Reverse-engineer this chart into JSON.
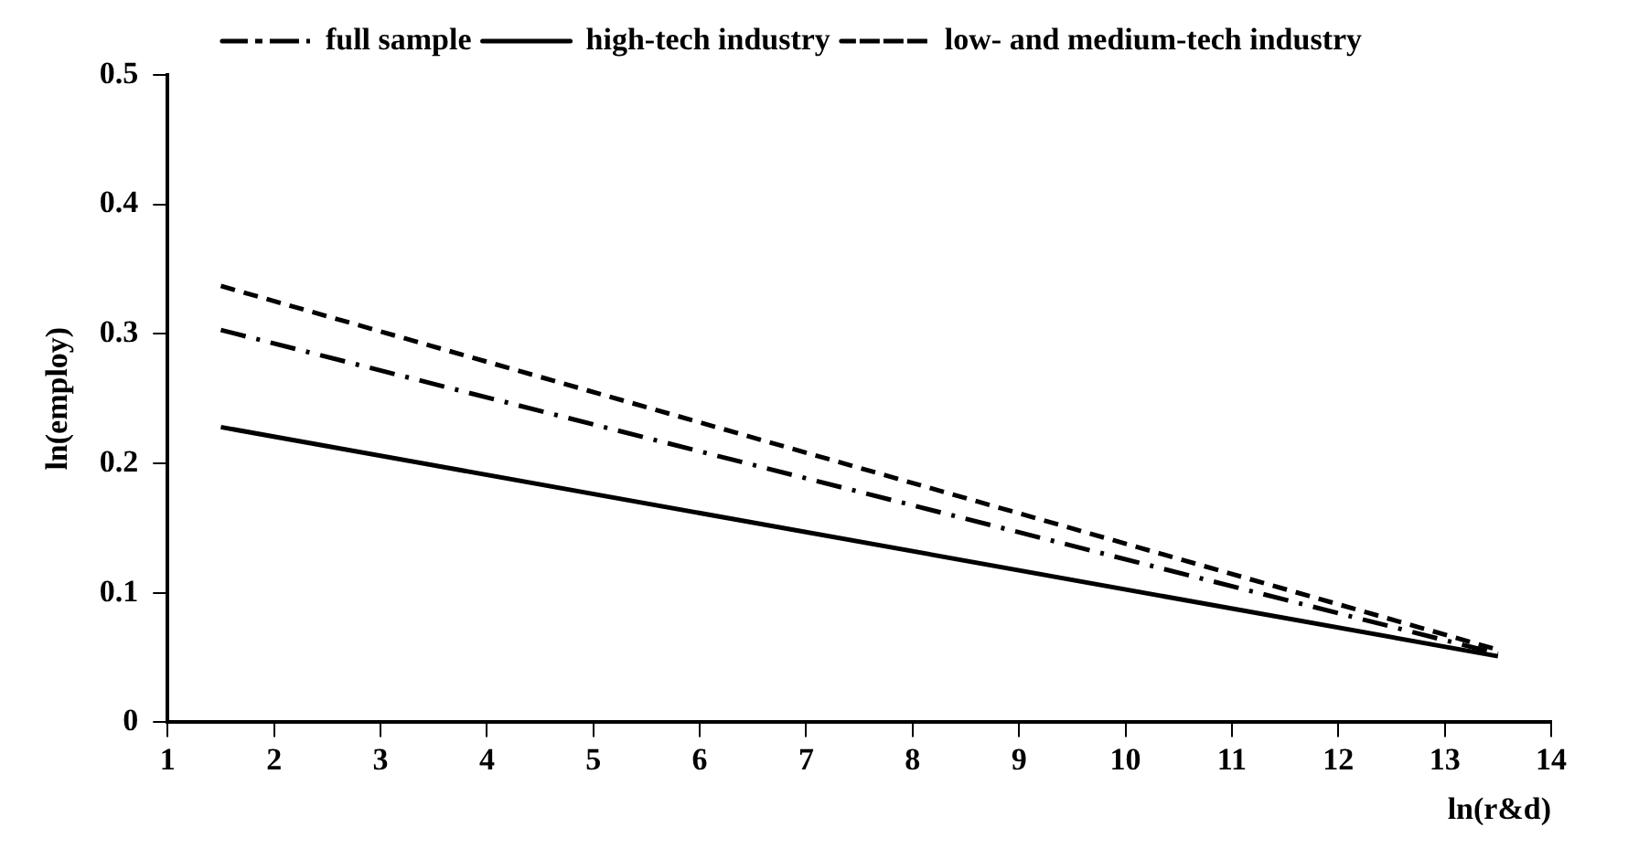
{
  "chart_data": {
    "type": "line",
    "xlabel": "ln(r&d)",
    "ylabel": "ln(employ)",
    "xlim": [
      1,
      14
    ],
    "xticks": [
      1,
      2,
      3,
      4,
      5,
      6,
      7,
      8,
      9,
      10,
      11,
      12,
      13,
      14
    ],
    "ylim": [
      0,
      0.5
    ],
    "yticks": [
      0,
      0.1,
      0.2,
      0.3,
      0.4,
      0.5
    ],
    "grid": false,
    "legend": "top",
    "marker": "none",
    "x": [
      1.5,
      13.5
    ],
    "series": [
      {
        "name": "full sample",
        "color": "#000000",
        "line_style": "dashdot",
        "values": [
          0.303,
          0.053
        ]
      },
      {
        "name": "high-tech industry",
        "color": "#000000",
        "line_style": "solid",
        "values": [
          0.228,
          0.051
        ]
      },
      {
        "name": "low- and medium-tech industry",
        "color": "#000000",
        "line_style": "dashed",
        "values": [
          0.337,
          0.056
        ]
      }
    ]
  }
}
